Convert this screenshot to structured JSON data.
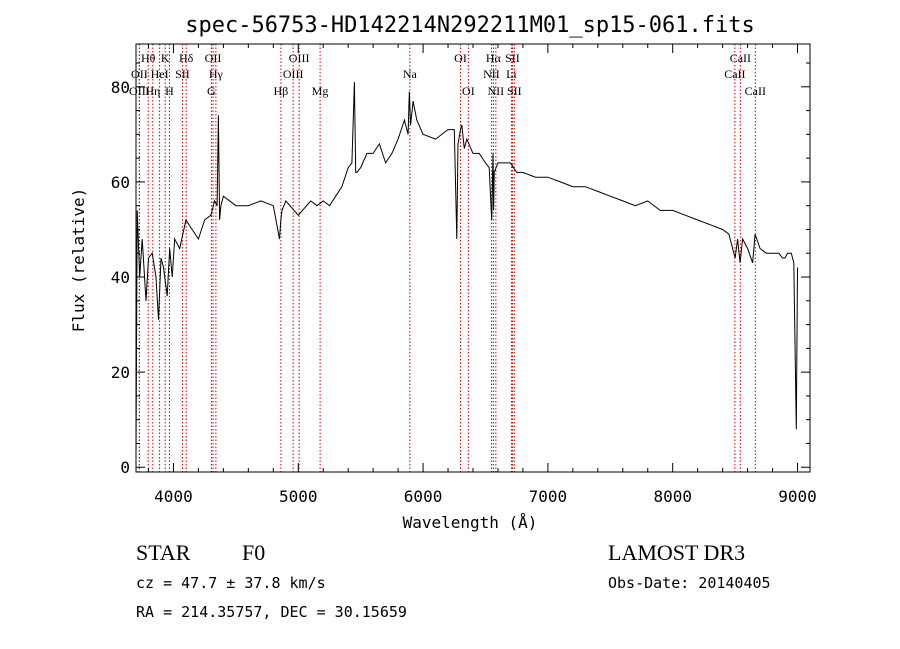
{
  "chart_data": {
    "type": "line",
    "title": "spec-56753-HD142214N292211M01_sp15-061.fits",
    "xlabel": "Wavelength (Å)",
    "ylabel": "Flux (relative)",
    "xlim": [
      3700,
      9100
    ],
    "ylim": [
      -1,
      89
    ],
    "xticks": [
      4000,
      5000,
      6000,
      7000,
      8000,
      9000
    ],
    "yticks": [
      0,
      20,
      40,
      60,
      80
    ],
    "series": [
      {
        "x": [
          3700,
          3710,
          3730,
          3750,
          3780,
          3800,
          3830,
          3860,
          3880,
          3900,
          3920,
          3950,
          3970,
          3990,
          4010,
          4050,
          4100,
          4150,
          4200,
          4250,
          4300,
          4330,
          4350,
          4360,
          4370,
          4380,
          4400,
          4500,
          4600,
          4700,
          4800,
          4850,
          4860,
          4870,
          4900,
          5000,
          5100,
          5150,
          5200,
          5250,
          5300,
          5350,
          5400,
          5430,
          5450,
          5460,
          5470,
          5500,
          5550,
          5580,
          5600,
          5650,
          5700,
          5750,
          5800,
          5850,
          5880,
          5890,
          5900,
          5920,
          5950,
          6000,
          6100,
          6200,
          6250,
          6270,
          6280,
          6300,
          6310,
          6330,
          6350,
          6400,
          6450,
          6500,
          6530,
          6550,
          6560,
          6565,
          6570,
          6600,
          6650,
          6700,
          6750,
          6800,
          6900,
          7000,
          7100,
          7200,
          7300,
          7400,
          7500,
          7600,
          7700,
          7800,
          7900,
          8000,
          8100,
          8200,
          8300,
          8400,
          8450,
          8500,
          8520,
          8540,
          8560,
          8600,
          8640,
          8660,
          8700,
          8750,
          8800,
          8850,
          8880,
          8900,
          8920,
          8950,
          8970,
          8990,
          9000
        ],
        "y": [
          2,
          54,
          40,
          48,
          35,
          44,
          45,
          40,
          31,
          44,
          42,
          36,
          46,
          40,
          48,
          46,
          52,
          50,
          48,
          52,
          53,
          56,
          55,
          74,
          52,
          55,
          57,
          55,
          55,
          56,
          55,
          48,
          52,
          54,
          56,
          53,
          56,
          55,
          56,
          55,
          57,
          59,
          63,
          64,
          81,
          62,
          62,
          63,
          66,
          66,
          66,
          68,
          64,
          66,
          69,
          73,
          70,
          79,
          72,
          77,
          73,
          70,
          69,
          71,
          71,
          48,
          68,
          71,
          72,
          67,
          69,
          66,
          66,
          64,
          63,
          52,
          66,
          54,
          62,
          64,
          64,
          64,
          62,
          62,
          61,
          61,
          60,
          59,
          59,
          58,
          57,
          56,
          55,
          56,
          54,
          54,
          53,
          52,
          51,
          50,
          49,
          44,
          48,
          43,
          48,
          46,
          43,
          49,
          46,
          45,
          45,
          45,
          44,
          44,
          45,
          45,
          43,
          8,
          42
        ]
      }
    ],
    "spectral_lines": [
      {
        "label": "Hθ",
        "x": 3798,
        "row": 1
      },
      {
        "label": "OII",
        "x": 3727,
        "row": 2
      },
      {
        "label": "OIII",
        "x": 3727,
        "row": 3
      },
      {
        "label": "K",
        "x": 3934,
        "row": 1
      },
      {
        "label": "HeI",
        "x": 3889,
        "row": 2
      },
      {
        "label": "Hη",
        "x": 3835,
        "row": 3
      },
      {
        "label": "Hδ",
        "x": 4102,
        "row": 1
      },
      {
        "label": "SII",
        "x": 4072,
        "row": 2
      },
      {
        "label": "H",
        "x": 3968,
        "row": 3
      },
      {
        "label": "OII",
        "x": 4317,
        "row": 1
      },
      {
        "label": "Hγ",
        "x": 4340,
        "row": 2
      },
      {
        "label": "G",
        "x": 4304,
        "row": 3
      },
      {
        "label": "OIII",
        "x": 5007,
        "row": 1
      },
      {
        "label": "OIII",
        "x": 4959,
        "row": 2
      },
      {
        "label": "Hβ",
        "x": 4861,
        "row": 3
      },
      {
        "label": "Mg",
        "x": 5175,
        "row": 3
      },
      {
        "label": "Na",
        "x": 5894,
        "row": 2
      },
      {
        "label": "OI",
        "x": 6300,
        "row": 1
      },
      {
        "label": "OI",
        "x": 6363,
        "row": 3
      },
      {
        "label": "Hα",
        "x": 6563,
        "row": 1
      },
      {
        "label": "NII",
        "x": 6548,
        "row": 2
      },
      {
        "label": "NII",
        "x": 6583,
        "row": 3
      },
      {
        "label": "SII",
        "x": 6716,
        "row": 1
      },
      {
        "label": "Li",
        "x": 6708,
        "row": 2
      },
      {
        "label": "SII",
        "x": 6731,
        "row": 3
      },
      {
        "label": "CaII",
        "x": 8542,
        "row": 1
      },
      {
        "label": "CaII",
        "x": 8498,
        "row": 2
      },
      {
        "label": "CaII",
        "x": 8662,
        "row": 3
      }
    ],
    "grid": false,
    "line_color": "#000000",
    "marker_color": "#cc0000"
  },
  "info": {
    "object_class": "STAR",
    "subclass": "F0",
    "survey": "LAMOST DR3",
    "redshift": "cz = 47.7 ± 37.8 km/s",
    "obs_date": "Obs-Date: 20140405",
    "coords": "RA = 214.35757, DEC =  30.15659"
  }
}
